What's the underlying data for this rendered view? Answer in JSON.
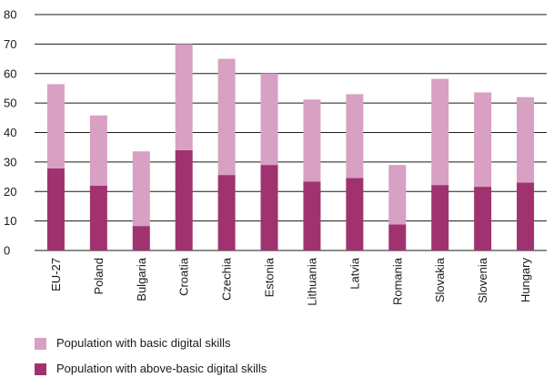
{
  "chart_data": {
    "type": "bar",
    "stacked": true,
    "categories": [
      "EU-27",
      "Poland",
      "Bulgaria",
      "Croatia",
      "Czechia",
      "Estonia",
      "Lithuania",
      "Latvia",
      "Romania",
      "Slovakia",
      "Slovenia",
      "Hungary"
    ],
    "series": [
      {
        "name": "Population with above-basic digital skills",
        "color": "#a0336f",
        "values": [
          27.8,
          22.0,
          8.3,
          34.0,
          25.6,
          29.0,
          23.4,
          24.6,
          8.8,
          22.2,
          21.6,
          23.0
        ]
      },
      {
        "name": "Population with basic digital skills",
        "color": "#d8a0c2",
        "values": [
          28.6,
          23.8,
          25.3,
          36.0,
          39.4,
          31.0,
          27.8,
          28.4,
          20.2,
          36.0,
          32.0,
          29.0
        ]
      }
    ],
    "ylim": [
      0,
      80
    ],
    "yticks": [
      "0",
      "10",
      "20",
      "30",
      "40",
      "50",
      "60",
      "70",
      "80"
    ],
    "grid": true,
    "title": "",
    "xlabel": "",
    "ylabel": "",
    "legend_position": "bottom-left"
  }
}
